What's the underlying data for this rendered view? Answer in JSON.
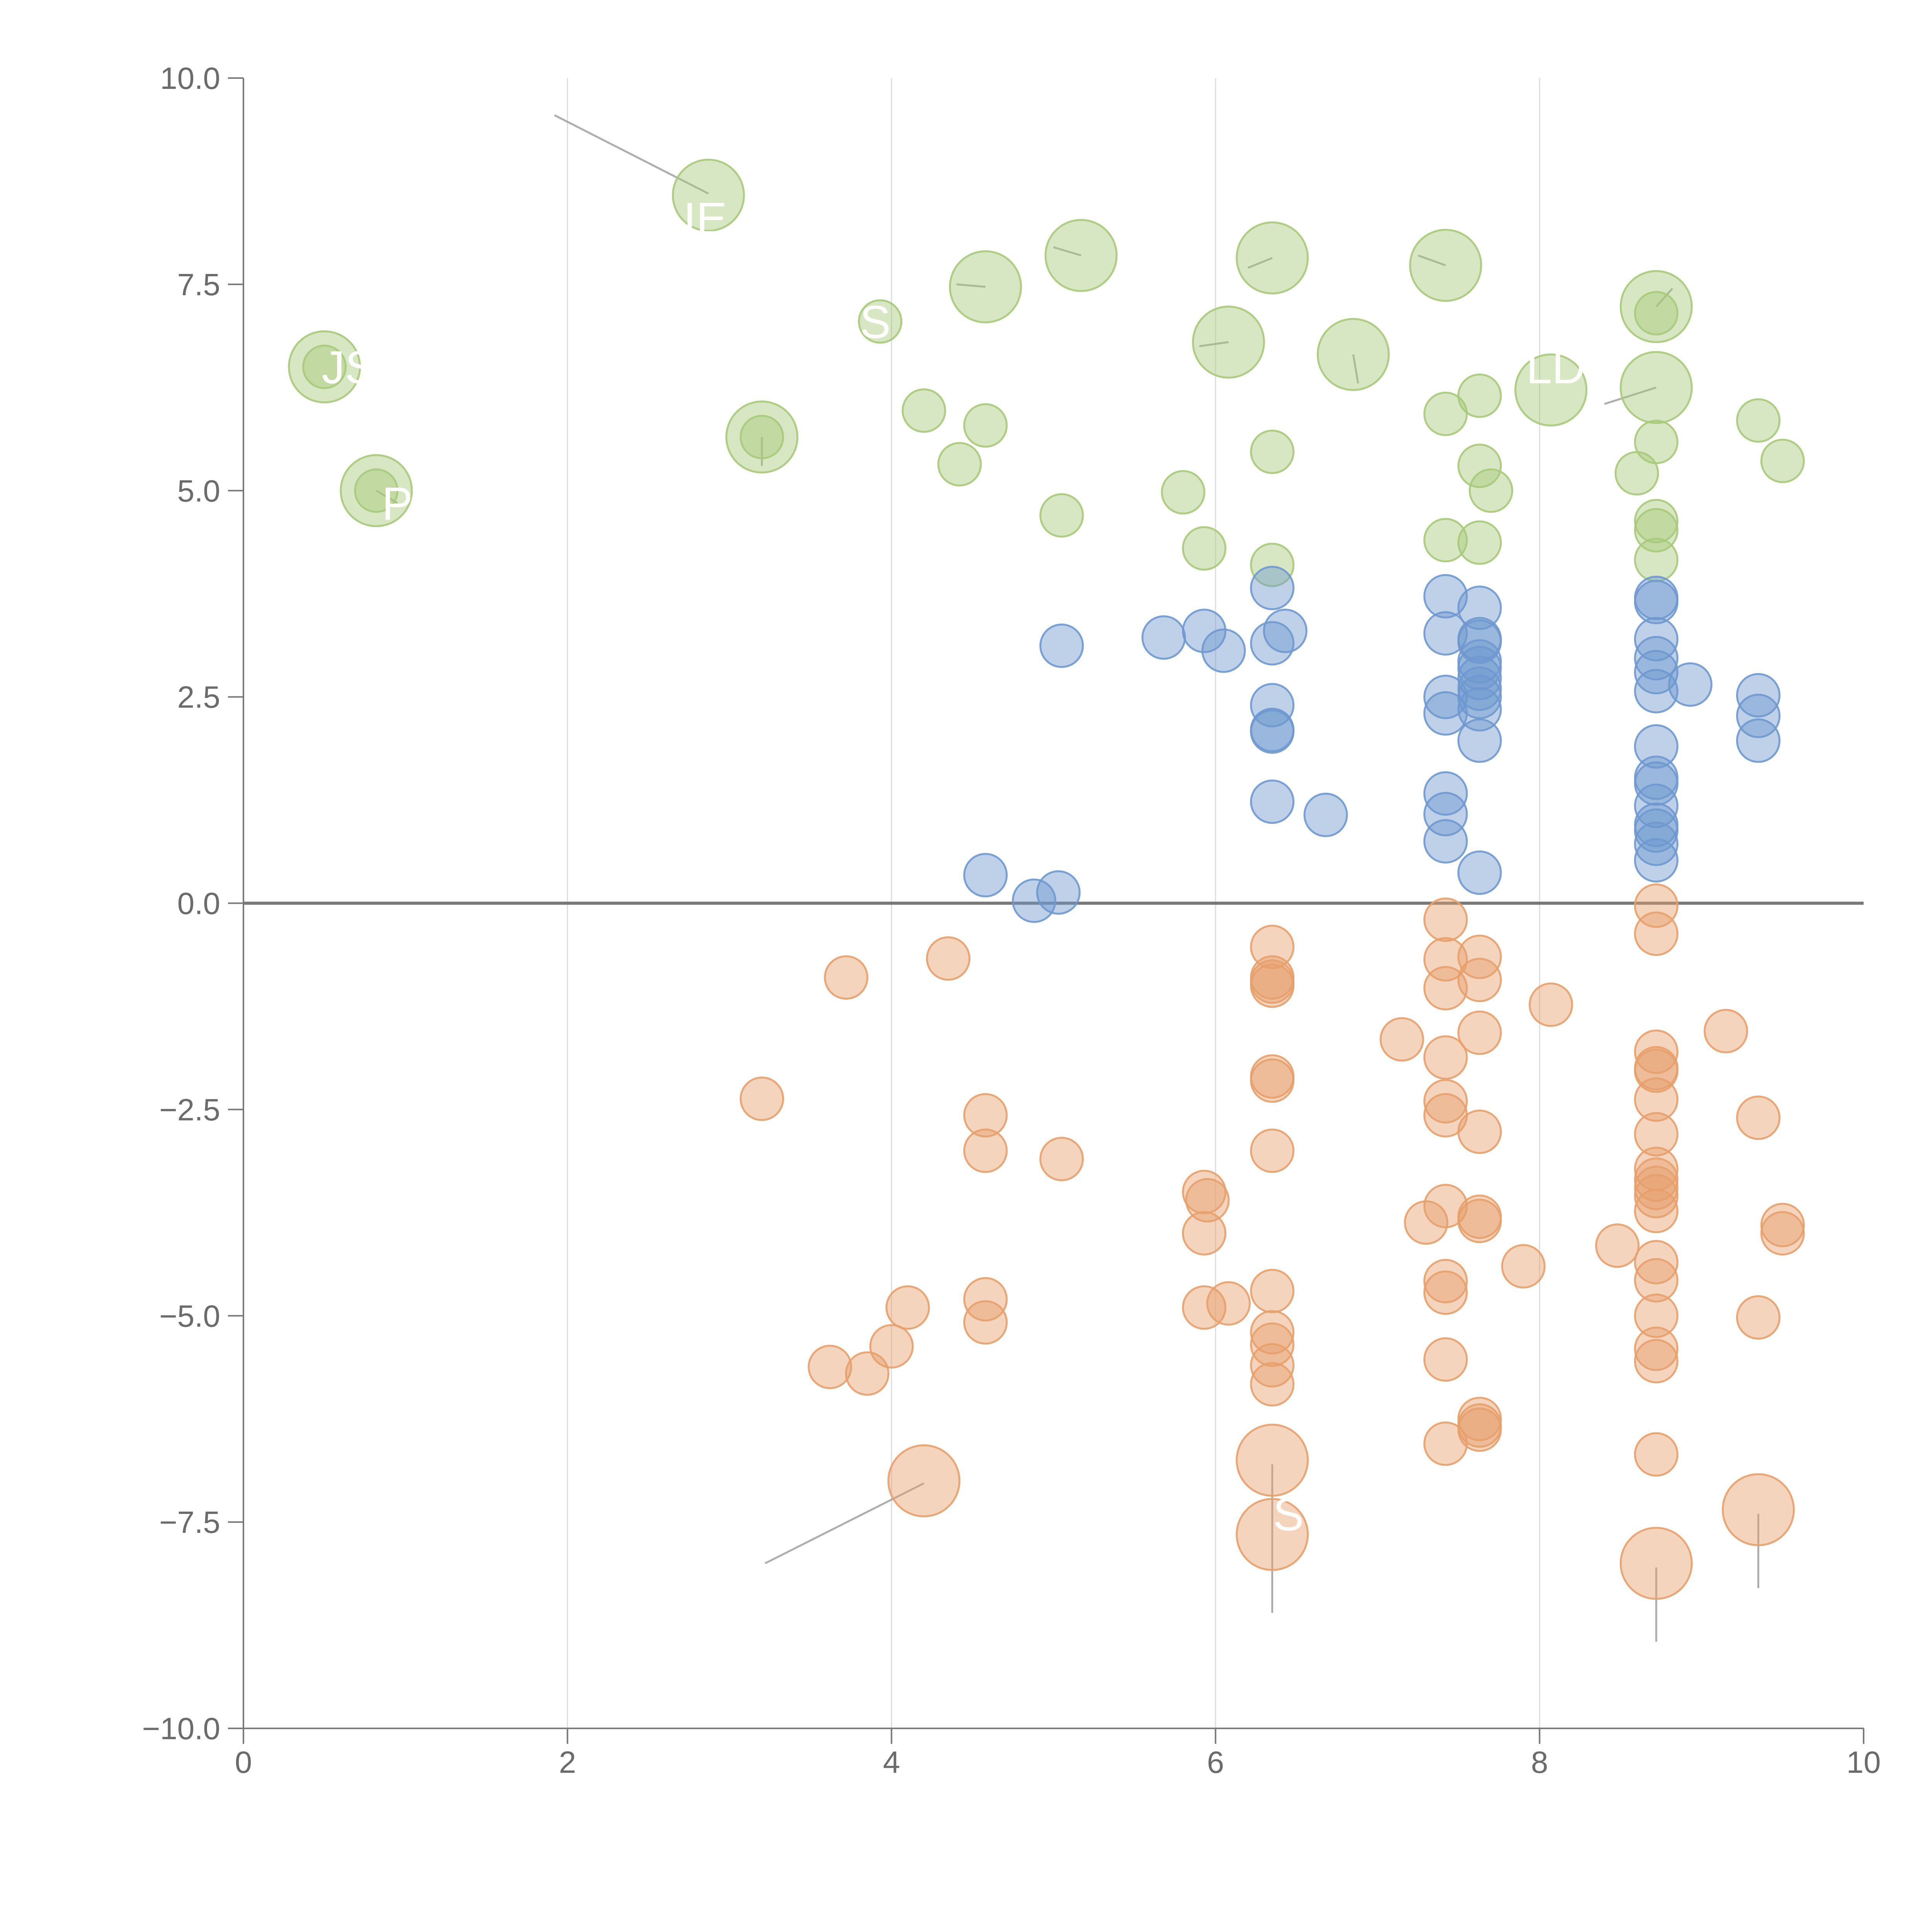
{
  "chart_data": {
    "type": "scatter",
    "xlim": [
      0,
      10
    ],
    "ylim": [
      -10,
      10
    ],
    "x_ticks": [
      0,
      2,
      4,
      6,
      8,
      10
    ],
    "x_tick_labels": [
      "0",
      "2",
      "4",
      "6",
      "8",
      "10"
    ],
    "y_ticks": [
      -10,
      -7.5,
      -5,
      -2.5,
      0,
      2.5,
      5,
      7.5,
      10
    ],
    "y_tick_labels": [
      "−10.0",
      "−7.5",
      "−5.0",
      "−2.5",
      "0.0",
      "2.5",
      "5.0",
      "7.5",
      "10.0"
    ],
    "vertical_gridlines_at": [
      2,
      4,
      6,
      8
    ],
    "zero_line": 0,
    "colors": {
      "green": "#a9c97a",
      "blue": "#6f98cf",
      "orange": "#e7a06c",
      "axis": "#7a7a7a",
      "grid": "#dddddd",
      "leader": "#9a9a9a"
    },
    "series": [
      {
        "name": "green",
        "points": [
          [
            0.5,
            6.5
          ],
          [
            0.82,
            5.0
          ],
          [
            3.2,
            5.65
          ],
          [
            3.93,
            7.05
          ],
          [
            4.2,
            5.97
          ],
          [
            4.42,
            5.32
          ],
          [
            4.58,
            5.79
          ],
          [
            5.05,
            4.7
          ],
          [
            5.8,
            4.98
          ],
          [
            5.93,
            4.3
          ],
          [
            6.35,
            5.47
          ],
          [
            6.35,
            4.1
          ],
          [
            7.42,
            5.93
          ],
          [
            7.42,
            4.4
          ],
          [
            7.63,
            6.15
          ],
          [
            7.63,
            5.3
          ],
          [
            7.7,
            5.0
          ],
          [
            7.63,
            4.37
          ],
          [
            8.6,
            5.21
          ],
          [
            8.72,
            5.59
          ],
          [
            8.72,
            4.63
          ],
          [
            8.72,
            4.52
          ],
          [
            8.72,
            4.16
          ],
          [
            8.72,
            7.15
          ],
          [
            9.35,
            5.85
          ],
          [
            9.5,
            5.36
          ]
        ],
        "big_points": [
          {
            "x": 0.5,
            "y": 6.5,
            "label": "JS",
            "lx": 0.65,
            "ly": 6.3
          },
          {
            "x": 0.82,
            "y": 5.0,
            "label": "P",
            "lx": 0.95,
            "ly": 4.65
          },
          {
            "x": 2.87,
            "y": 8.58,
            "label": "IE",
            "lx": 2.85,
            "ly": 8.1
          },
          {
            "x": 3.2,
            "y": 5.65,
            "label": "",
            "lx": 0,
            "ly": 0
          },
          {
            "x": 4.58,
            "y": 7.47,
            "label": "S",
            "lx": 3.9,
            "ly": 6.85
          },
          {
            "x": 5.17,
            "y": 7.85,
            "label": "",
            "lx": 0,
            "ly": 0
          },
          {
            "x": 6.08,
            "y": 6.8,
            "label": "",
            "lx": 0,
            "ly": 0
          },
          {
            "x": 6.35,
            "y": 7.82,
            "label": "",
            "lx": 0,
            "ly": 0
          },
          {
            "x": 6.85,
            "y": 6.65,
            "label": "",
            "lx": 0,
            "ly": 0
          },
          {
            "x": 7.42,
            "y": 7.73,
            "label": "",
            "lx": 0,
            "ly": 0
          },
          {
            "x": 8.07,
            "y": 6.22,
            "label": "LD",
            "lx": 8.1,
            "ly": 6.3
          },
          {
            "x": 8.72,
            "y": 7.23,
            "label": "",
            "lx": 0,
            "ly": 0
          },
          {
            "x": 8.72,
            "y": 6.25,
            "label": "",
            "lx": 0,
            "ly": 0
          }
        ]
      },
      {
        "name": "blue",
        "points": [
          [
            4.58,
            0.34
          ],
          [
            4.88,
            0.03
          ],
          [
            5.03,
            0.13
          ],
          [
            5.05,
            3.12
          ],
          [
            5.68,
            3.22
          ],
          [
            5.93,
            3.3
          ],
          [
            6.05,
            3.06
          ],
          [
            6.35,
            3.82
          ],
          [
            6.35,
            3.15
          ],
          [
            6.43,
            3.3
          ],
          [
            6.35,
            2.4
          ],
          [
            6.35,
            2.1
          ],
          [
            6.35,
            2.08
          ],
          [
            6.35,
            1.23
          ],
          [
            6.68,
            1.07
          ],
          [
            7.42,
            3.72
          ],
          [
            7.42,
            3.27
          ],
          [
            7.42,
            2.5
          ],
          [
            7.42,
            2.3
          ],
          [
            7.42,
            1.33
          ],
          [
            7.42,
            1.08
          ],
          [
            7.42,
            0.75
          ],
          [
            7.63,
            3.58
          ],
          [
            7.63,
            3.2
          ],
          [
            7.63,
            3.17
          ],
          [
            7.63,
            2.93
          ],
          [
            7.63,
            2.85
          ],
          [
            7.63,
            2.73
          ],
          [
            7.63,
            2.6
          ],
          [
            7.63,
            2.5
          ],
          [
            7.63,
            2.35
          ],
          [
            7.63,
            1.97
          ],
          [
            7.63,
            0.37
          ],
          [
            8.72,
            3.7
          ],
          [
            8.72,
            3.65
          ],
          [
            8.72,
            3.2
          ],
          [
            8.72,
            2.97
          ],
          [
            8.72,
            2.8
          ],
          [
            8.72,
            2.57
          ],
          [
            8.72,
            1.9
          ],
          [
            8.72,
            1.52
          ],
          [
            8.72,
            1.45
          ],
          [
            8.72,
            1.18
          ],
          [
            8.72,
            0.95
          ],
          [
            8.72,
            0.88
          ],
          [
            8.72,
            0.72
          ],
          [
            8.72,
            0.52
          ],
          [
            8.93,
            2.65
          ],
          [
            9.35,
            2.52
          ],
          [
            9.35,
            2.27
          ],
          [
            9.35,
            1.97
          ]
        ]
      },
      {
        "name": "orange",
        "points": [
          [
            3.2,
            -2.37
          ],
          [
            3.72,
            -0.9
          ],
          [
            3.62,
            -5.62
          ],
          [
            3.85,
            -5.7
          ],
          [
            4.0,
            -5.37
          ],
          [
            4.1,
            -4.9
          ],
          [
            4.35,
            -0.67
          ],
          [
            4.58,
            -2.57
          ],
          [
            4.58,
            -3.0
          ],
          [
            4.58,
            -4.8
          ],
          [
            4.58,
            -5.08
          ],
          [
            5.05,
            -3.1
          ],
          [
            5.93,
            -3.5
          ],
          [
            5.95,
            -3.6
          ],
          [
            5.93,
            -4.0
          ],
          [
            5.93,
            -4.9
          ],
          [
            6.08,
            -4.85
          ],
          [
            6.35,
            -0.53
          ],
          [
            6.35,
            -0.9
          ],
          [
            6.35,
            -0.95
          ],
          [
            6.35,
            -1.0
          ],
          [
            6.35,
            -2.1
          ],
          [
            6.35,
            -2.15
          ],
          [
            6.35,
            -3.0
          ],
          [
            6.35,
            -4.7
          ],
          [
            6.35,
            -5.2
          ],
          [
            6.35,
            -5.35
          ],
          [
            6.35,
            -5.6
          ],
          [
            6.35,
            -5.83
          ],
          [
            7.15,
            -1.65
          ],
          [
            7.3,
            -3.87
          ],
          [
            7.42,
            -0.2
          ],
          [
            7.42,
            -0.68
          ],
          [
            7.42,
            -1.03
          ],
          [
            7.42,
            -1.87
          ],
          [
            7.42,
            -2.4
          ],
          [
            7.42,
            -2.57
          ],
          [
            7.42,
            -3.67
          ],
          [
            7.42,
            -4.58
          ],
          [
            7.42,
            -4.72
          ],
          [
            7.42,
            -5.53
          ],
          [
            7.42,
            -6.55
          ],
          [
            7.63,
            -0.65
          ],
          [
            7.63,
            -0.93
          ],
          [
            7.63,
            -1.57
          ],
          [
            7.63,
            -2.77
          ],
          [
            7.63,
            -3.8
          ],
          [
            7.63,
            -3.85
          ],
          [
            7.63,
            -6.25
          ],
          [
            7.63,
            -6.33
          ],
          [
            7.63,
            -6.38
          ],
          [
            7.9,
            -4.4
          ],
          [
            8.07,
            -1.23
          ],
          [
            8.48,
            -4.15
          ],
          [
            8.72,
            -0.03
          ],
          [
            8.72,
            -0.37
          ],
          [
            8.72,
            -1.8
          ],
          [
            8.72,
            -2.0
          ],
          [
            8.72,
            -2.03
          ],
          [
            8.72,
            -2.38
          ],
          [
            8.72,
            -2.8
          ],
          [
            8.72,
            -3.22
          ],
          [
            8.72,
            -3.35
          ],
          [
            8.72,
            -3.45
          ],
          [
            8.72,
            -3.55
          ],
          [
            8.72,
            -3.73
          ],
          [
            8.72,
            -4.35
          ],
          [
            8.72,
            -4.57
          ],
          [
            8.72,
            -5.0
          ],
          [
            8.72,
            -5.4
          ],
          [
            8.72,
            -5.55
          ],
          [
            8.72,
            -6.68
          ],
          [
            9.15,
            -1.55
          ],
          [
            9.35,
            -2.6
          ],
          [
            9.35,
            -5.02
          ],
          [
            9.5,
            -3.9
          ],
          [
            9.5,
            -4.0
          ]
        ],
        "big_points": [
          {
            "x": 4.2,
            "y": -7.0,
            "label": "",
            "lx": 0,
            "ly": 0
          },
          {
            "x": 6.35,
            "y": -6.75,
            "label": "S",
            "lx": 6.45,
            "ly": -7.6
          },
          {
            "x": 6.35,
            "y": -7.65,
            "label": "",
            "lx": 0,
            "ly": 0
          },
          {
            "x": 8.72,
            "y": -8.0,
            "label": "",
            "lx": 0,
            "ly": 0
          },
          {
            "x": 9.35,
            "y": -7.35,
            "label": "",
            "lx": 0,
            "ly": 0
          }
        ]
      }
    ],
    "leader_lines": [
      [
        [
          1.92,
          9.55
        ],
        [
          2.87,
          8.6
        ]
      ],
      [
        [
          4.2,
          -7.03
        ],
        [
          3.22,
          -8.0
        ]
      ],
      [
        [
          6.35,
          -6.8
        ],
        [
          6.35,
          -8.6
        ]
      ],
      [
        [
          8.72,
          -8.05
        ],
        [
          8.72,
          -8.95
        ]
      ],
      [
        [
          9.35,
          -7.4
        ],
        [
          9.35,
          -8.3
        ]
      ],
      [
        [
          4.58,
          7.47
        ],
        [
          4.4,
          7.5
        ]
      ],
      [
        [
          5.17,
          7.85
        ],
        [
          5.0,
          7.95
        ]
      ],
      [
        [
          6.35,
          7.82
        ],
        [
          6.2,
          7.7
        ]
      ],
      [
        [
          7.42,
          7.73
        ],
        [
          7.25,
          7.85
        ]
      ],
      [
        [
          8.72,
          7.23
        ],
        [
          8.82,
          7.45
        ]
      ],
      [
        [
          8.72,
          6.25
        ],
        [
          8.4,
          6.05
        ]
      ],
      [
        [
          6.08,
          6.8
        ],
        [
          5.9,
          6.75
        ]
      ],
      [
        [
          6.85,
          6.65
        ],
        [
          6.88,
          6.3
        ]
      ],
      [
        [
          3.2,
          5.65
        ],
        [
          3.2,
          5.3
        ]
      ],
      [
        [
          0.82,
          5.0
        ],
        [
          0.95,
          4.85
        ]
      ]
    ]
  }
}
